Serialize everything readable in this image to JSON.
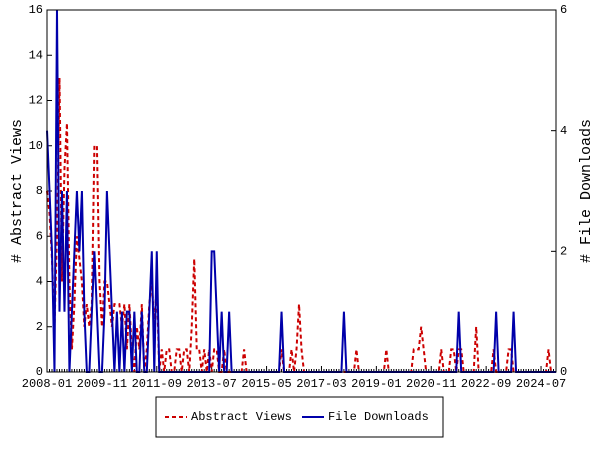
{
  "chart_data": {
    "type": "line",
    "categories": [
      "2008-01",
      null,
      null,
      null,
      null,
      null,
      null,
      null,
      null,
      null,
      null,
      null,
      null,
      null,
      null,
      null,
      null,
      null,
      null,
      null,
      null,
      null,
      "2009-11",
      null,
      null,
      null,
      null,
      null,
      null,
      null,
      null,
      null,
      null,
      null,
      null,
      null,
      null,
      null,
      null,
      null,
      null,
      null,
      null,
      null,
      "2011-09",
      null,
      null,
      null,
      null,
      null,
      null,
      null,
      null,
      null,
      null,
      null,
      null,
      null,
      null,
      null,
      null,
      null,
      null,
      null,
      null,
      null,
      "2013-07",
      null,
      null,
      null,
      null,
      null,
      null,
      null,
      null,
      null,
      null,
      null,
      null,
      null,
      null,
      null,
      null,
      null,
      null,
      null,
      null,
      null,
      "2015-05",
      null,
      null,
      null,
      null,
      null,
      null,
      null,
      null,
      null,
      null,
      null,
      null,
      null,
      null,
      null,
      null,
      null,
      null,
      null,
      null,
      null,
      "2017-03",
      null,
      null,
      null,
      null,
      null,
      null,
      null,
      null,
      null,
      null,
      null,
      null,
      null,
      null,
      null,
      null,
      null,
      null,
      null,
      null,
      null,
      "2019-01",
      null,
      null,
      null,
      null,
      null,
      null,
      null,
      null,
      null,
      null,
      null,
      null,
      null,
      null,
      null,
      null,
      null,
      null,
      null,
      null,
      null,
      "2020-11",
      null,
      null,
      null,
      null,
      null,
      null,
      null,
      null,
      null,
      null,
      null,
      null,
      null,
      null,
      null,
      null,
      null,
      null,
      null,
      null,
      null,
      "2022-09",
      null,
      null,
      null,
      null,
      null,
      null,
      null,
      null,
      null,
      null,
      null,
      null,
      null,
      null,
      null,
      null,
      null,
      null,
      null,
      null,
      null,
      "2024-07",
      null,
      null,
      null,
      null,
      null,
      null
    ],
    "series": [
      {
        "name": "Abstract Views",
        "color": "#cc0000",
        "dash": true,
        "axis": "y",
        "values": [
          8,
          7,
          5,
          2,
          6,
          13,
          4,
          9,
          11,
          4,
          1,
          3,
          6,
          5,
          4,
          2,
          3,
          2,
          3,
          10,
          10,
          4,
          2,
          4,
          4,
          3,
          2,
          3,
          3,
          3,
          2,
          3,
          1,
          3,
          1,
          0,
          2,
          1,
          3,
          0,
          1,
          3,
          4,
          2,
          4,
          0,
          1,
          0,
          1,
          1,
          0,
          0,
          1,
          1,
          0,
          1,
          1,
          0,
          2,
          5,
          1,
          1,
          0,
          1,
          0,
          1,
          0,
          1,
          1,
          0,
          0,
          1,
          0,
          0,
          0,
          0,
          0,
          0,
          0,
          1,
          0,
          0,
          0,
          0,
          0,
          0,
          0,
          0,
          0,
          0,
          0,
          0,
          0,
          0,
          1,
          0,
          0,
          0,
          1,
          0,
          1,
          3,
          1,
          0,
          0,
          0,
          0,
          0,
          0,
          0,
          0,
          0,
          0,
          0,
          0,
          0,
          0,
          0,
          0,
          0,
          0,
          0,
          0,
          0,
          1,
          0,
          0,
          0,
          0,
          0,
          0,
          0,
          0,
          0,
          0,
          0,
          1,
          0,
          0,
          0,
          0,
          0,
          0,
          0,
          0,
          0,
          0,
          1,
          1,
          1,
          2,
          1,
          0,
          0,
          0,
          0,
          0,
          0,
          1,
          0,
          0,
          0,
          1,
          1,
          0,
          1,
          1,
          0,
          0,
          0,
          0,
          0,
          2,
          0,
          0,
          0,
          0,
          0,
          0,
          1,
          0,
          0,
          0,
          0,
          0,
          1,
          1,
          0,
          0,
          0,
          0,
          0,
          0,
          0,
          0,
          0,
          0,
          0,
          0,
          0,
          0,
          1,
          0,
          0,
          0
        ]
      },
      {
        "name": "File Downloads",
        "color": "#0000aa",
        "dash": false,
        "axis": "y2",
        "values": [
          4,
          3,
          2,
          0,
          6,
          1,
          3,
          1,
          3,
          0,
          1,
          2,
          3,
          2,
          3,
          1,
          0,
          0,
          1,
          2,
          1,
          0,
          0,
          1,
          3,
          2,
          1,
          0,
          1,
          0,
          1,
          0,
          1,
          1,
          0,
          1,
          0,
          0,
          1,
          0,
          0,
          1,
          2,
          0,
          2,
          0,
          0,
          0,
          0,
          0,
          0,
          0,
          0,
          0,
          0,
          0,
          0,
          0,
          0,
          0,
          0,
          0,
          0,
          0,
          0,
          0,
          2,
          2,
          1,
          0,
          1,
          0,
          0,
          1,
          0,
          0,
          0,
          0,
          0,
          0,
          0,
          0,
          0,
          0,
          0,
          0,
          0,
          0,
          0,
          0,
          0,
          0,
          0,
          0,
          1,
          0,
          0,
          0,
          0,
          0,
          0,
          0,
          0,
          0,
          0,
          0,
          0,
          0,
          0,
          0,
          0,
          0,
          0,
          0,
          0,
          0,
          0,
          0,
          0,
          1,
          0,
          0,
          0,
          0,
          0,
          0,
          0,
          0,
          0,
          0,
          0,
          0,
          0,
          0,
          0,
          0,
          0,
          0,
          0,
          0,
          0,
          0,
          0,
          0,
          0,
          0,
          0,
          0,
          0,
          0,
          0,
          0,
          0,
          0,
          0,
          0,
          0,
          0,
          0,
          0,
          0,
          0,
          0,
          0,
          0,
          1,
          0,
          0,
          0,
          0,
          0,
          0,
          0,
          0,
          0,
          0,
          0,
          0,
          0,
          0,
          1,
          0,
          0,
          0,
          0,
          0,
          0,
          1,
          0,
          0,
          0,
          0,
          0,
          0,
          0,
          0,
          0,
          0,
          0,
          0,
          0,
          0,
          0,
          0,
          0
        ]
      }
    ],
    "ylabel": "# Abstract Views",
    "y2label": "# File Downloads",
    "ylim": [
      0,
      16
    ],
    "yticks": [
      0,
      2,
      4,
      6,
      8,
      10,
      12,
      14,
      16
    ],
    "y2lim": [
      0,
      6
    ],
    "y2ticks": [
      0,
      2,
      4,
      6
    ],
    "legend": "bottom"
  }
}
